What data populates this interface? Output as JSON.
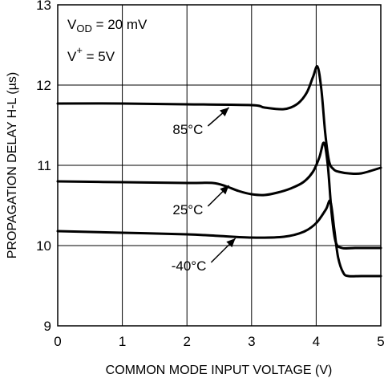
{
  "chart_data": {
    "type": "line",
    "xlabel": "COMMON MODE INPUT VOLTAGE (V)",
    "ylabel": "PROPAGATION DELAY H-L (µs)",
    "xlim": [
      0,
      5
    ],
    "ylim": [
      9,
      13
    ],
    "xticks": [
      "0",
      "1",
      "2",
      "3",
      "4",
      "5"
    ],
    "yticks": [
      "9",
      "10",
      "11",
      "12",
      "13"
    ],
    "grid": true,
    "conditions": {
      "vod_prefix": "V",
      "vod_sub": "OD",
      "vod_value": " = 20 mV",
      "vplus_prefix": "V",
      "vplus_sup": "+",
      "vplus_value": " = 5V"
    },
    "series": [
      {
        "name": "85°C",
        "x": [
          0,
          1,
          2,
          3,
          3.2,
          3.5,
          3.7,
          3.85,
          3.95,
          4.02,
          4.08,
          4.14,
          4.2,
          4.27,
          4.35,
          4.5,
          4.7,
          5.0
        ],
        "y": [
          11.77,
          11.77,
          11.76,
          11.75,
          11.72,
          11.7,
          11.76,
          11.9,
          12.1,
          12.23,
          11.95,
          11.4,
          11.05,
          10.95,
          10.92,
          10.9,
          10.9,
          10.97
        ]
      },
      {
        "name": "25°C",
        "x": [
          0,
          1,
          2,
          2.4,
          2.6,
          2.8,
          3.0,
          3.2,
          3.4,
          3.6,
          3.8,
          3.95,
          4.05,
          4.12,
          4.18,
          4.24,
          4.3,
          4.4,
          4.6,
          4.8,
          5.0
        ],
        "y": [
          10.8,
          10.79,
          10.78,
          10.78,
          10.74,
          10.68,
          10.64,
          10.63,
          10.66,
          10.71,
          10.79,
          10.92,
          11.1,
          11.28,
          11.0,
          10.4,
          10.05,
          9.97,
          9.97,
          9.97,
          9.97
        ]
      },
      {
        "name": "-40°C",
        "x": [
          0,
          1,
          2,
          2.5,
          3.0,
          3.5,
          3.8,
          4.0,
          4.15,
          4.22,
          4.28,
          4.34,
          4.42,
          4.5,
          4.7,
          5.0
        ],
        "y": [
          10.18,
          10.16,
          10.14,
          10.12,
          10.1,
          10.11,
          10.17,
          10.28,
          10.45,
          10.55,
          10.2,
          9.85,
          9.66,
          9.62,
          9.62,
          9.62
        ]
      }
    ],
    "annotations": [
      {
        "text": "85°C",
        "label_x": 2.25,
        "label_y": 11.45,
        "target_x": 2.65,
        "target_y": 11.72
      },
      {
        "text": "25°C",
        "label_x": 2.25,
        "label_y": 10.45,
        "target_x": 2.65,
        "target_y": 10.75
      },
      {
        "text": "-40°C",
        "label_x": 2.3,
        "label_y": 9.75,
        "target_x": 2.75,
        "target_y": 10.09
      }
    ]
  }
}
